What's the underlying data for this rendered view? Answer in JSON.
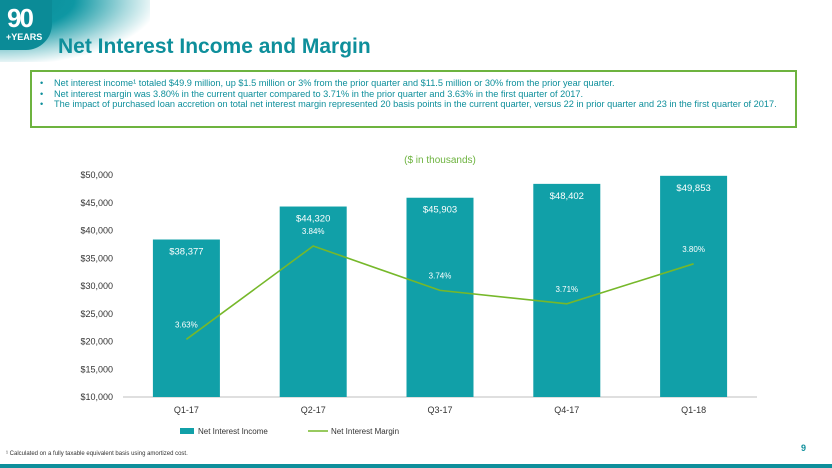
{
  "logo": {
    "number": "90",
    "subtitle": "+YEARS"
  },
  "title": "Net Interest Income and Margin",
  "bullets": [
    "Net interest income¹ totaled $49.9 million, up $1.5 million or 3% from the prior quarter and $11.5 million or 30% from the prior year quarter.",
    "Net interest margin was 3.80% in the current quarter compared to 3.71% in the prior quarter and 3.63% in the first quarter of 2017.",
    "The impact of purchased loan accretion on total net interest margin represented 20 basis points in the current quarter, versus 22 in prior quarter and 23 in the first quarter of 2017."
  ],
  "footnote": "¹ Calculated on a fully taxable equivalent basis using amortized cost.",
  "page_number": "9",
  "colors": {
    "accent": "#0e8f9b",
    "bar": "#11a0a8",
    "line": "#76b82a",
    "border": "#6db33f"
  },
  "chart_data": {
    "type": "bar",
    "title": "($ in thousands)",
    "categories": [
      "Q1-17",
      "Q2-17",
      "Q3-17",
      "Q4-17",
      "Q1-18"
    ],
    "ylim": [
      10000,
      50000
    ],
    "y_ticks": [
      "$10,000",
      "$15,000",
      "$20,000",
      "$25,000",
      "$30,000",
      "$35,000",
      "$40,000",
      "$45,000",
      "$50,000"
    ],
    "series": [
      {
        "name": "Net Interest Income",
        "type": "bar",
        "values": [
          38377,
          44320,
          45903,
          48402,
          49853
        ],
        "labels": [
          "$38,377",
          "$44,320",
          "$45,903",
          "$48,402",
          "$49,853"
        ]
      },
      {
        "name": "Net Interest Margin",
        "type": "line",
        "values": [
          3.63,
          3.84,
          3.74,
          3.71,
          3.8
        ],
        "labels": [
          "3.63%",
          "3.84%",
          "3.74%",
          "3.71%",
          "3.80%"
        ]
      }
    ],
    "legend_position": "bottom"
  }
}
